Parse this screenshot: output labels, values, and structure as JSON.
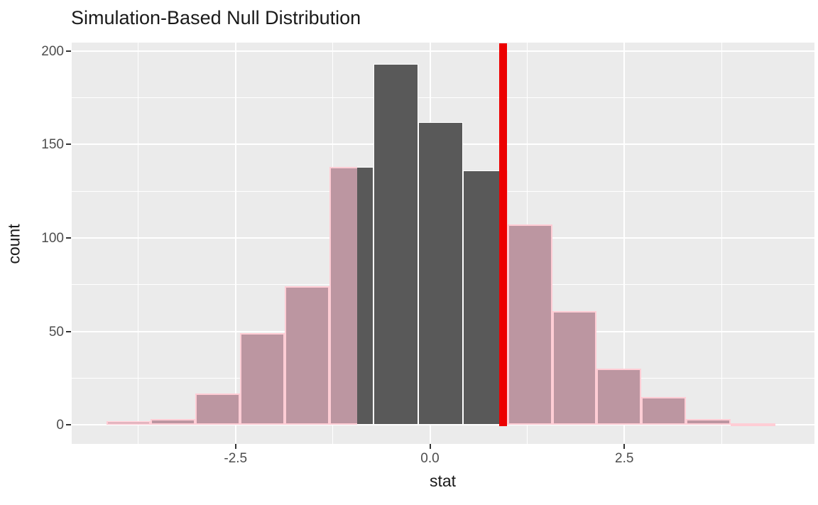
{
  "chart_data": {
    "type": "histogram",
    "title": "Simulation-Based Null Distribution",
    "xlabel": "stat",
    "ylabel": "count",
    "bin_start": -4.164,
    "bin_width": 0.5735,
    "counts": [
      2,
      3,
      17,
      49,
      74,
      138,
      193,
      162,
      136,
      107,
      61,
      30,
      15,
      3,
      1
    ],
    "obs_stat": 0.94,
    "shade_direction": "two-sided",
    "x_ticks": [
      -2.5,
      0.0,
      2.5
    ],
    "x_tick_labels": [
      "-2.5",
      "0.0",
      "2.5"
    ],
    "x_minor_ticks": [
      -3.75,
      -1.25,
      1.25,
      3.75
    ],
    "y_ticks": [
      0,
      50,
      100,
      150,
      200
    ],
    "y_tick_labels": [
      "0",
      "50",
      "100",
      "150",
      "200"
    ],
    "y_minor_ticks": [
      25,
      75,
      125,
      175
    ],
    "xlim": [
      -4.61,
      4.94
    ],
    "ylim": [
      -10.1,
      204.4
    ],
    "grid": "on",
    "legend": "none",
    "colors": {
      "panel_background": "#ebebeb",
      "gridline": "#ffffff",
      "bar_fill": "#595959",
      "bar_border": "#ffffff",
      "shaded_bar_fill": "#bc96a1",
      "shaded_bar_border": "#ffcdd5",
      "observed_line": "#ec0000",
      "tick_text": "#4d4d4d",
      "title_text": "#1a1a1a"
    }
  }
}
